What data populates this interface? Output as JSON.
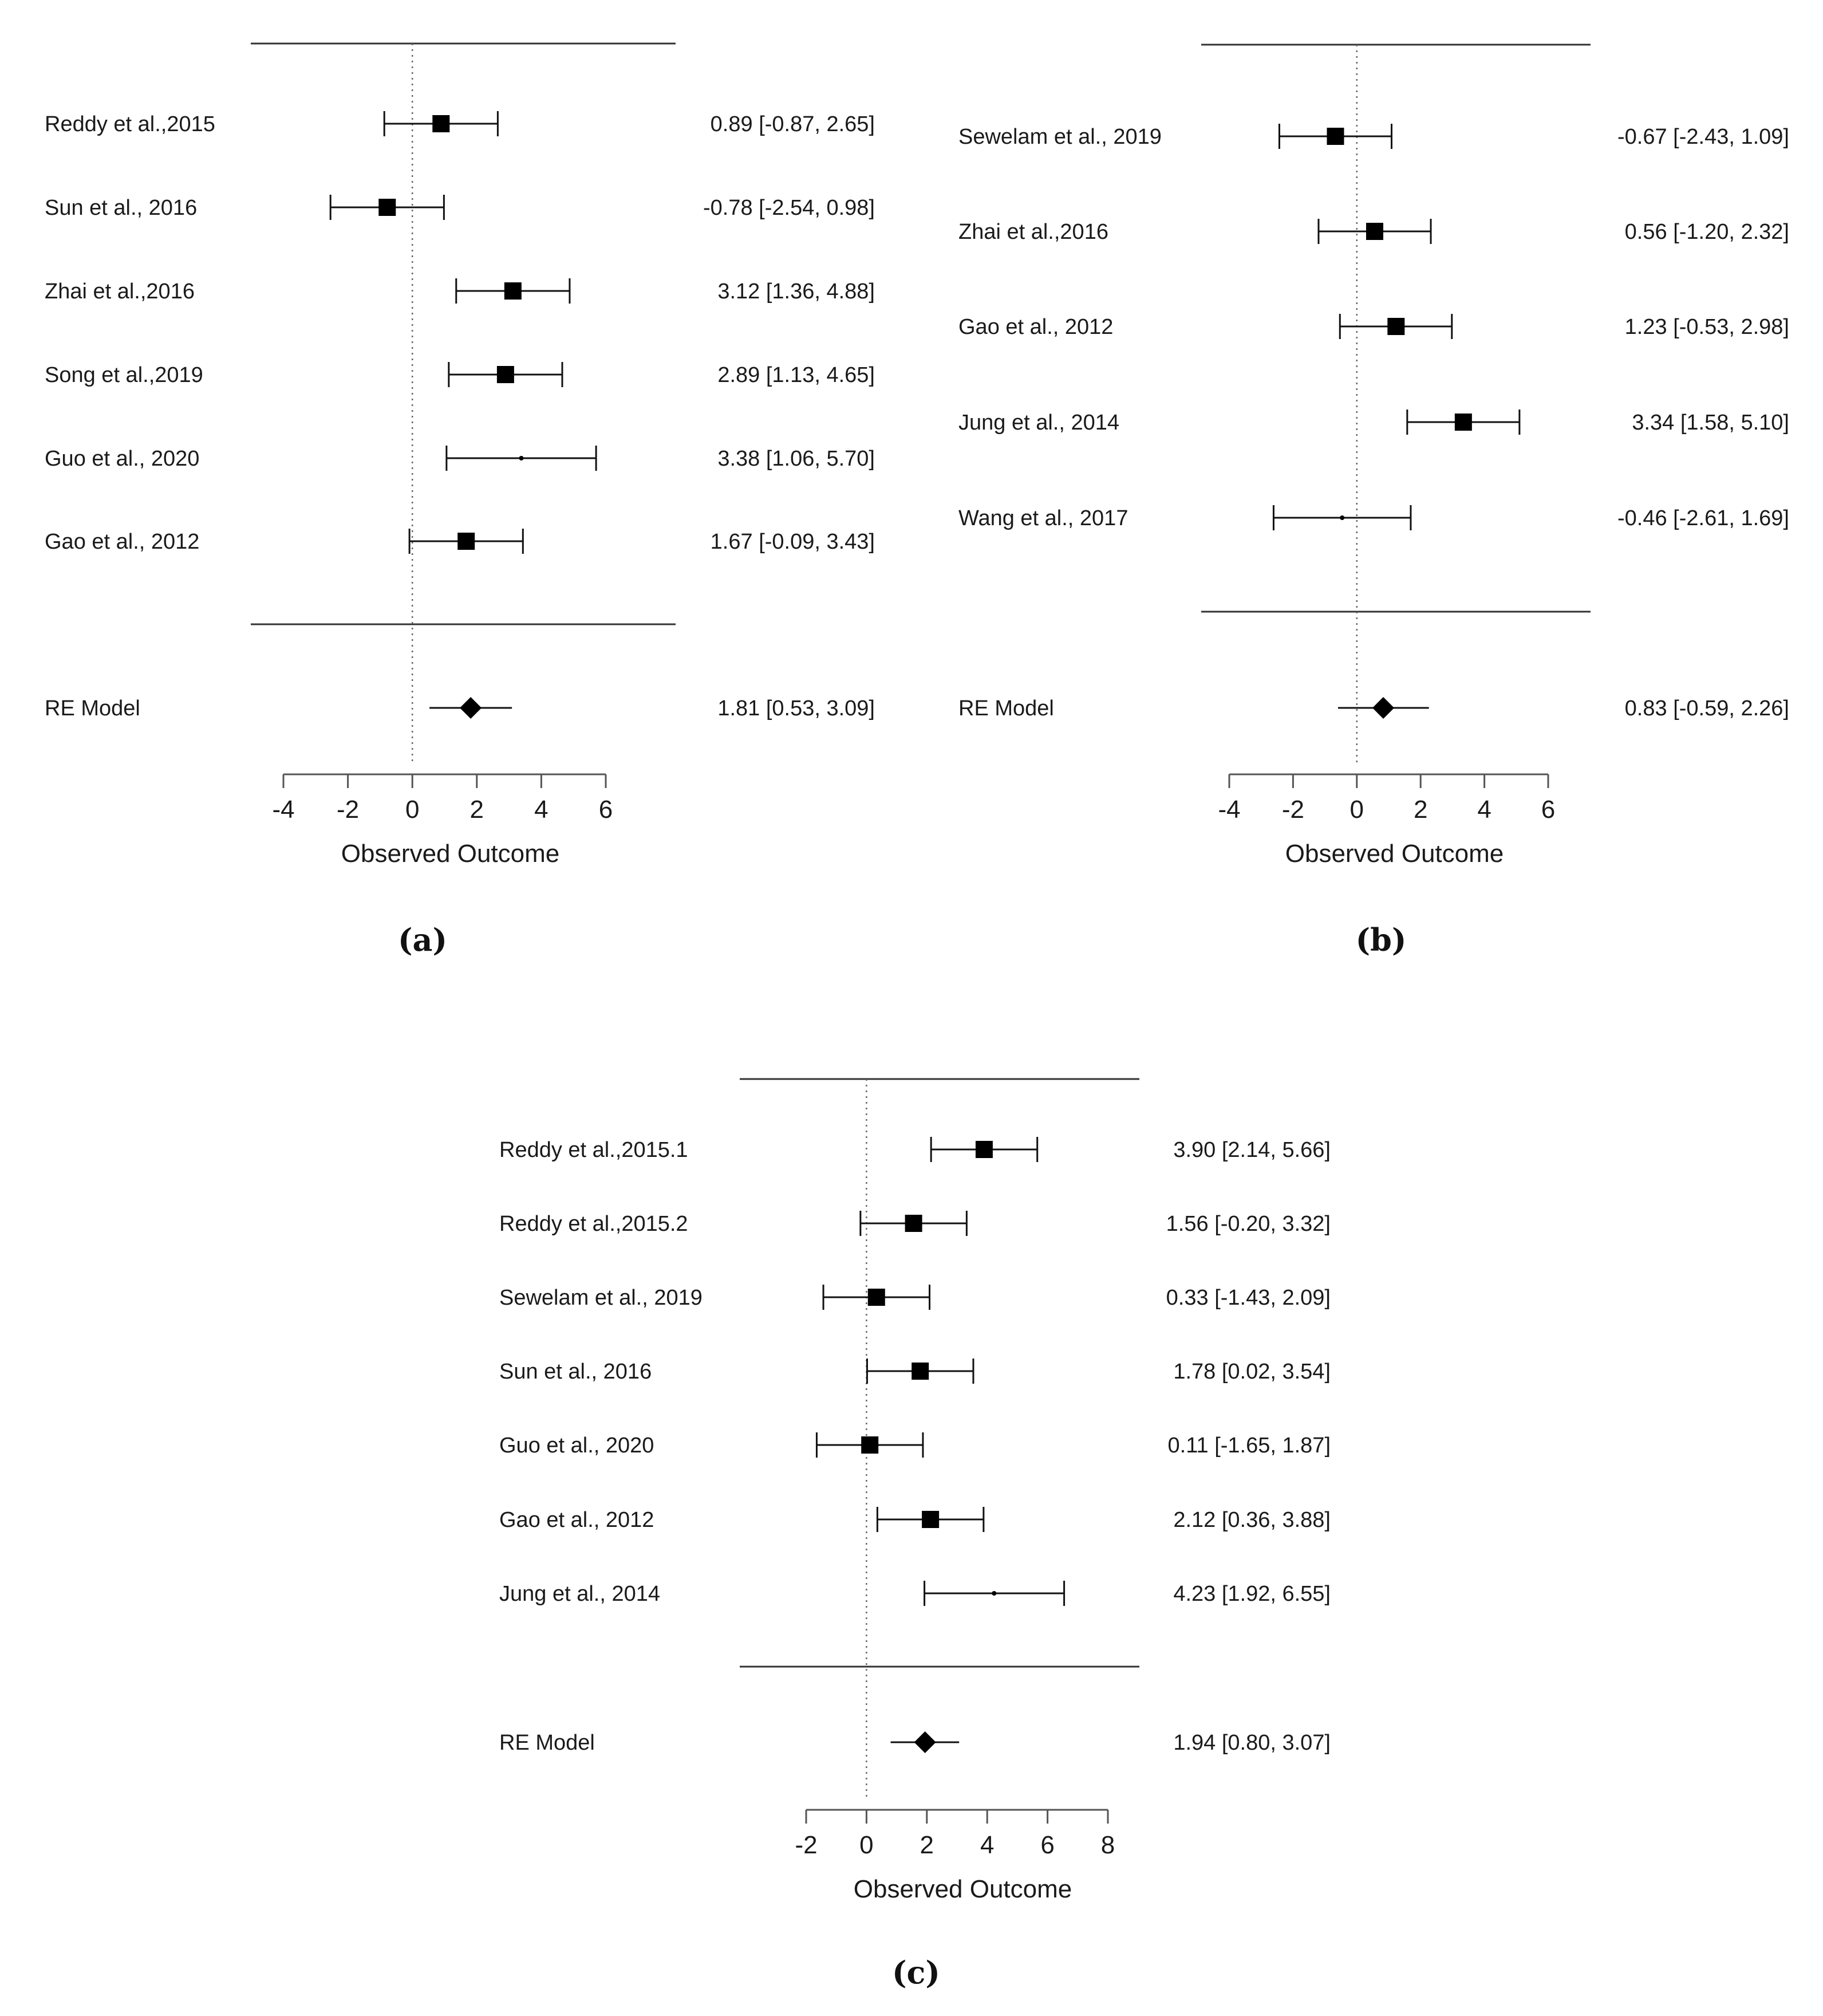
{
  "chart_data": [
    {
      "panel_label": "(a)",
      "type": "forest",
      "xlabel": "Observed Outcome",
      "xlim": [
        -4,
        6
      ],
      "xticks": [
        -4,
        -2,
        0,
        2,
        4,
        6
      ],
      "reference_line": 0,
      "studies": [
        {
          "name": "Reddy et al.,2015",
          "estimate": 0.89,
          "lower": -0.87,
          "upper": 2.65,
          "text": "0.89 [-0.87, 2.65]",
          "marker": "square"
        },
        {
          "name": "Sun et al., 2016",
          "estimate": -0.78,
          "lower": -2.54,
          "upper": 0.98,
          "text": "-0.78 [-2.54, 0.98]",
          "marker": "square"
        },
        {
          "name": "Zhai et al.,2016",
          "estimate": 3.12,
          "lower": 1.36,
          "upper": 4.88,
          "text": "3.12 [1.36, 4.88]",
          "marker": "square"
        },
        {
          "name": "Song et al.,2019",
          "estimate": 2.89,
          "lower": 1.13,
          "upper": 4.65,
          "text": "2.89 [1.13, 4.65]",
          "marker": "square"
        },
        {
          "name": "Guo et al., 2020",
          "estimate": 3.38,
          "lower": 1.06,
          "upper": 5.7,
          "text": "3.38 [1.06, 5.70]",
          "marker": "dot"
        },
        {
          "name": "Gao et al., 2012",
          "estimate": 1.67,
          "lower": -0.09,
          "upper": 3.43,
          "text": "1.67 [-0.09, 3.43]",
          "marker": "square"
        }
      ],
      "summary": {
        "name": "RE Model",
        "estimate": 1.81,
        "lower": 0.53,
        "upper": 3.09,
        "text": "1.81 [0.53, 3.09]"
      }
    },
    {
      "panel_label": "(b)",
      "type": "forest",
      "xlabel": "Observed Outcome",
      "xlim": [
        -4,
        6
      ],
      "xticks": [
        -4,
        -2,
        0,
        2,
        4,
        6
      ],
      "reference_line": 0,
      "studies": [
        {
          "name": "Sewelam et al., 2019",
          "estimate": -0.67,
          "lower": -2.43,
          "upper": 1.09,
          "text": "-0.67 [-2.43, 1.09]",
          "marker": "square"
        },
        {
          "name": "Zhai et al.,2016",
          "estimate": 0.56,
          "lower": -1.2,
          "upper": 2.32,
          "text": "0.56 [-1.20, 2.32]",
          "marker": "square"
        },
        {
          "name": "Gao et al., 2012",
          "estimate": 1.23,
          "lower": -0.53,
          "upper": 2.98,
          "text": "1.23 [-0.53, 2.98]",
          "marker": "square"
        },
        {
          "name": "Jung et al., 2014",
          "estimate": 3.34,
          "lower": 1.58,
          "upper": 5.1,
          "text": "3.34 [1.58, 5.10]",
          "marker": "square"
        },
        {
          "name": "Wang et al., 2017",
          "estimate": -0.46,
          "lower": -2.61,
          "upper": 1.69,
          "text": "-0.46 [-2.61, 1.69]",
          "marker": "dot"
        }
      ],
      "summary": {
        "name": "RE Model",
        "estimate": 0.83,
        "lower": -0.59,
        "upper": 2.26,
        "text": "0.83 [-0.59, 2.26]"
      }
    },
    {
      "panel_label": "(c)",
      "type": "forest",
      "xlabel": "Observed Outcome",
      "xlim": [
        -2,
        8
      ],
      "xticks": [
        -2,
        0,
        2,
        4,
        6,
        8
      ],
      "reference_line": 0,
      "studies": [
        {
          "name": "Reddy et al.,2015.1",
          "estimate": 3.9,
          "lower": 2.14,
          "upper": 5.66,
          "text": "3.90 [2.14, 5.66]",
          "marker": "square"
        },
        {
          "name": "Reddy et al.,2015.2",
          "estimate": 1.56,
          "lower": -0.2,
          "upper": 3.32,
          "text": "1.56 [-0.20, 3.32]",
          "marker": "square"
        },
        {
          "name": "Sewelam et al., 2019",
          "estimate": 0.33,
          "lower": -1.43,
          "upper": 2.09,
          "text": "0.33 [-1.43, 2.09]",
          "marker": "square"
        },
        {
          "name": "Sun et al., 2016",
          "estimate": 1.78,
          "lower": 0.02,
          "upper": 3.54,
          "text": "1.78 [0.02, 3.54]",
          "marker": "square"
        },
        {
          "name": "Guo et al., 2020",
          "estimate": 0.11,
          "lower": -1.65,
          "upper": 1.87,
          "text": "0.11 [-1.65, 1.87]",
          "marker": "square"
        },
        {
          "name": "Gao et al., 2012",
          "estimate": 2.12,
          "lower": 0.36,
          "upper": 3.88,
          "text": "2.12 [0.36, 3.88]",
          "marker": "square"
        },
        {
          "name": "Jung et al., 2014",
          "estimate": 4.23,
          "lower": 1.92,
          "upper": 6.55,
          "text": "4.23 [1.92, 6.55]",
          "marker": "dot"
        }
      ],
      "summary": {
        "name": "RE Model",
        "estimate": 1.94,
        "lower": 0.8,
        "upper": 3.07,
        "text": "1.94 [0.80, 3.07]"
      }
    }
  ]
}
